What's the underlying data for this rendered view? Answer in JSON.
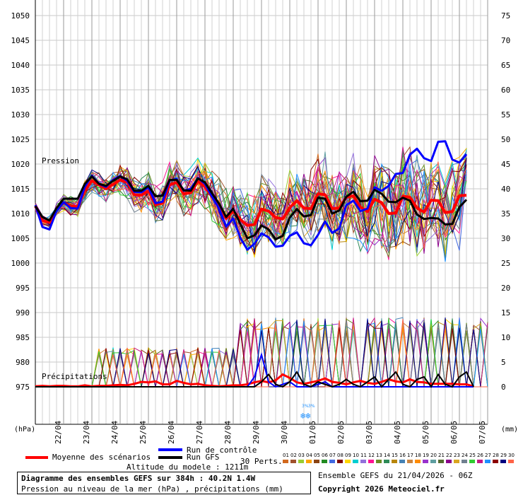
{
  "chart_data": {
    "type": "line",
    "title": "Diagramme des ensembles GEFS sur 384h : 40.2N 1.4W",
    "subtitle": "Pression au niveau de la mer (hPa) , précipitations (mm)",
    "y_left_label": "(hPa)",
    "y_right_label": "(mm)",
    "y_left_ticks": [
      1050,
      1045,
      1040,
      1035,
      1030,
      1025,
      1020,
      1015,
      1010,
      1005,
      1000,
      995,
      990,
      985,
      980,
      975
    ],
    "y_right_ticks": [
      75,
      70,
      65,
      60,
      55,
      50,
      45,
      40,
      35,
      30,
      25,
      20,
      15,
      10,
      5,
      0
    ],
    "ylim_pressure": [
      975,
      1050
    ],
    "ylim_precip": [
      0,
      75
    ],
    "x_ticks": [
      "22/04",
      "23/04",
      "24/04",
      "25/04",
      "26/04",
      "27/04",
      "28/04",
      "29/04",
      "30/04",
      "01/05",
      "02/05",
      "03/05",
      "04/05",
      "05/05",
      "06/05",
      "07/05"
    ],
    "pressure_label": "Pression",
    "precip_label": "Précipitations",
    "snow_marks": [
      "3%",
      "3%"
    ],
    "grid": true,
    "series": [
      {
        "name": "Moyenne des scénarios",
        "color": "#ff0000",
        "values": [
          1011.5,
          1008.6,
          1008.2,
          1010.7,
          1012.2,
          1011.5,
          1011.4,
          1014.6,
          1016.6,
          1015.8,
          1015.0,
          1015.9,
          1016.8,
          1016.3,
          1013.8,
          1013.7,
          1014.6,
          1011.8,
          1012.1,
          1015.8,
          1016.3,
          1014.0,
          1014.2,
          1016.5,
          1015.4,
          1013.4,
          1011.5,
          1009.0,
          1010.5,
          1008.8,
          1007.6,
          1007.8,
          1010.9,
          1010.5,
          1009.2,
          1008.9,
          1011.2,
          1012.6,
          1011.1,
          1011.0,
          1014.0,
          1013.8,
          1011.0,
          1011.1,
          1013.3,
          1013.6,
          1011.3,
          1010.4,
          1012.9,
          1012.2,
          1010.0,
          1010.1,
          1013.5,
          1013.3,
          1011.1,
          1010.3,
          1012.7,
          1012.6,
          1010.2,
          1010.4,
          1013.6,
          1013.7
        ]
      },
      {
        "name": "Run de contrôle",
        "color": "#0000ff",
        "values": [
          1011.7,
          1007.3,
          1006.8,
          1010.5,
          1012.3,
          1011.1,
          1011.0,
          1015.4,
          1017.7,
          1016.0,
          1015.4,
          1016.8,
          1017.6,
          1016.6,
          1014.4,
          1014.3,
          1015.3,
          1012.1,
          1012.4,
          1016.7,
          1017.0,
          1014.6,
          1015.0,
          1017.2,
          1016.0,
          1013.4,
          1011.0,
          1007.4,
          1009.0,
          1005.1,
          1002.7,
          1003.9,
          1006.0,
          1005.2,
          1003.3,
          1003.5,
          1005.5,
          1006.2,
          1004.0,
          1003.6,
          1005.7,
          1008.4,
          1006.1,
          1007.0,
          1011.7,
          1012.6,
          1010.5,
          1011.0,
          1015.3,
          1014.6,
          1015.6,
          1018.0,
          1018.2,
          1021.9,
          1023.1,
          1021.2,
          1020.6,
          1024.5,
          1024.6,
          1020.9,
          1020.3,
          1022.0
        ]
      },
      {
        "name": "Run GFS",
        "color": "#000000",
        "values": [
          1011.5,
          1009.3,
          1008.6,
          1011.1,
          1013.0,
          1013.0,
          1013.0,
          1016.0,
          1017.5,
          1016.0,
          1015.6,
          1016.6,
          1017.5,
          1016.9,
          1014.6,
          1014.6,
          1015.6,
          1013.5,
          1013.6,
          1016.8,
          1016.8,
          1014.7,
          1014.6,
          1017.1,
          1016.3,
          1014.1,
          1012.0,
          1009.3,
          1011.0,
          1007.9,
          1005.0,
          1005.6,
          1007.6,
          1006.8,
          1004.8,
          1005.5,
          1009.2,
          1010.9,
          1009.4,
          1009.7,
          1013.2,
          1013.0,
          1010.0,
          1010.6,
          1013.4,
          1014.4,
          1012.5,
          1012.6,
          1014.8,
          1014.0,
          1012.4,
          1012.3,
          1013.2,
          1012.6,
          1009.8,
          1008.9,
          1009.1,
          1009.0,
          1007.8,
          1007.9,
          1011.3,
          1012.8
        ]
      }
    ],
    "precip_series": [
      {
        "name": "Moyenne des scénarios",
        "color": "#ff0000",
        "values": [
          0.1,
          0.2,
          0.1,
          0.2,
          0.2,
          0.1,
          0.1,
          0.3,
          0.1,
          0.2,
          0.2,
          0.3,
          0.4,
          0.3,
          0.6,
          1.0,
          0.9,
          1.1,
          0.5,
          0.5,
          1.2,
          0.8,
          0.5,
          0.6,
          0.3,
          0.2,
          0.1,
          0.2,
          0.3,
          0.3,
          0.5,
          0.9,
          1.2,
          0.9,
          1.3,
          2.5,
          1.8,
          0.9,
          0.6,
          0.9,
          1.2,
          1.7,
          1.0,
          0.8,
          0.5,
          0.9,
          1.2,
          0.8,
          0.6,
          1.0,
          1.5,
          1.1,
          0.9,
          1.5,
          1.0,
          0.9,
          0.6,
          0.6,
          0.6,
          0.6,
          0.5,
          0.5,
          0.1
        ]
      },
      {
        "name": "Run de contrôle",
        "color": "#0000ff",
        "values": [
          0,
          0,
          0,
          0,
          0,
          0,
          0,
          0,
          0,
          0,
          0,
          0,
          0,
          0,
          0,
          0,
          0,
          0,
          0,
          0,
          0,
          0,
          0,
          0,
          0,
          0,
          0,
          0,
          0,
          0,
          0,
          2.0,
          6.5,
          1.0,
          0,
          0.5,
          1.0,
          0,
          0,
          0,
          0.5,
          1.0,
          0,
          0,
          0,
          0,
          0,
          0,
          0,
          0,
          0,
          0,
          0,
          0,
          0,
          0,
          0,
          0,
          0,
          0,
          0,
          0,
          0
        ]
      },
      {
        "name": "Run GFS",
        "color": "#000000",
        "values": [
          0,
          0,
          0,
          0,
          0,
          0,
          0,
          0,
          0,
          0,
          0,
          0,
          0,
          0,
          0,
          0,
          0,
          0,
          0,
          0,
          0,
          0,
          0,
          0,
          0,
          0,
          0,
          0,
          0,
          0,
          0,
          0,
          1.0,
          2.5,
          0.5,
          0,
          1.0,
          3.0,
          0.5,
          0,
          1.0,
          0.5,
          0,
          0.5,
          1.5,
          0.5,
          0,
          1.0,
          2.0,
          0,
          1.5,
          3.0,
          0.5,
          0,
          1.5,
          2.0,
          0,
          2.5,
          0.5,
          0,
          2.0,
          3.0,
          0
        ]
      }
    ],
    "perturbations_label": "30 Perts.",
    "perturbation_ids": [
      "01",
      "02",
      "03",
      "04",
      "05",
      "06",
      "07",
      "08",
      "09",
      "10",
      "11",
      "12",
      "13",
      "14",
      "15",
      "16",
      "17",
      "18",
      "19",
      "20",
      "21",
      "22",
      "23",
      "24",
      "25",
      "26",
      "27",
      "28",
      "29",
      "30"
    ],
    "perturbation_colors": [
      "#d2691e",
      "#a0522d",
      "#9acd32",
      "#ffa500",
      "#8b4513",
      "#228b22",
      "#4169e1",
      "#800000",
      "#ffd700",
      "#00ced1",
      "#9370db",
      "#ff1493",
      "#6b8e23",
      "#2e8b57",
      "#b8860b",
      "#4682b4",
      "#cd853f",
      "#ff8c00",
      "#9932cc",
      "#5f9ea0",
      "#556b2f",
      "#8b008b",
      "#daa520",
      "#708090",
      "#32cd32",
      "#c71585",
      "#1e90ff",
      "#8b0000",
      "#000080",
      "#ff6347"
    ]
  },
  "legend": {
    "mean_label": "Moyenne des scénarios",
    "control_label": "Run de contrôle",
    "gfs_label": "Run GFS",
    "mean_color": "#ff0000",
    "control_color": "#0000ff",
    "gfs_color": "#000000",
    "altitude": "Altitude du modele : 1211m"
  },
  "footer": {
    "title": "Diagramme des ensembles GEFS sur 384h : 40.2N 1.4W",
    "subtitle": "Pression au niveau de la mer (hPa) , précipitations (mm)",
    "ensemble": "Ensemble GEFS du 21/04/2026 - 06Z",
    "copyright": "Copyright 2026 Meteociel.fr"
  }
}
